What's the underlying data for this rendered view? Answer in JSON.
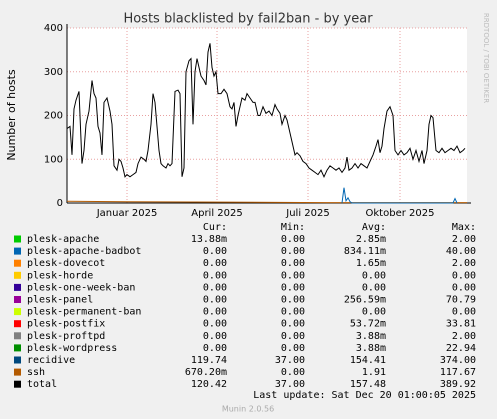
{
  "chart_data": {
    "type": "line",
    "title": "Hosts blacklisted by fail2ban - by year",
    "y_label": "Number of hosts",
    "side_label": "RRDTOOL / TOBI OETIKER",
    "xlim": [
      -60,
      340
    ],
    "xticks": [
      {
        "value": 0,
        "label": "Januar 2025"
      },
      {
        "value": 90,
        "label": "April 2025"
      },
      {
        "value": 181,
        "label": "Juli 2025"
      },
      {
        "value": 273,
        "label": "Oktober 2025"
      }
    ],
    "ylim": [
      0,
      400
    ],
    "yticks": [
      0,
      100,
      200,
      300,
      400
    ],
    "grid": true,
    "series": [
      {
        "name": "total",
        "color": "#000000",
        "x": [
          -60,
          -57,
          -55,
          -53,
          -51,
          -48,
          -45,
          -43,
          -41,
          -38,
          -35,
          -33,
          -31,
          -29,
          -27,
          -25,
          -23,
          -20,
          -17,
          -15,
          -13,
          -10,
          -8,
          -6,
          -4,
          -2,
          0,
          3,
          6,
          9,
          11,
          14,
          17,
          19,
          21,
          24,
          26,
          28,
          30,
          32,
          34,
          36,
          39,
          41,
          43,
          45,
          48,
          51,
          53,
          55,
          57,
          59,
          62,
          64,
          66,
          68,
          70,
          72,
          74,
          77,
          79,
          81,
          83,
          85,
          87,
          89,
          91,
          94,
          97,
          100,
          103,
          105,
          107,
          109,
          111,
          113,
          115,
          118,
          120,
          123,
          126,
          128,
          131,
          133,
          136,
          139,
          142,
          145,
          148,
          150,
          153,
          155,
          158,
          160,
          163,
          166,
          168,
          170,
          173,
          176,
          179,
          182,
          185,
          188,
          191,
          194,
          197,
          200,
          203,
          206,
          209,
          212,
          215,
          218,
          220,
          222,
          225,
          228,
          231,
          234,
          237,
          240,
          243,
          246,
          249,
          251,
          253,
          255,
          257,
          260,
          263,
          266,
          268,
          271,
          274,
          277,
          280,
          283,
          286,
          289,
          292,
          295,
          297,
          300,
          302,
          304,
          306,
          309,
          312,
          315,
          318,
          321,
          324,
          327,
          330,
          333,
          336,
          338
        ],
        "values": [
          170,
          175,
          110,
          215,
          235,
          255,
          90,
          120,
          180,
          210,
          280,
          250,
          240,
          175,
          160,
          110,
          230,
          240,
          210,
          180,
          85,
          75,
          100,
          95,
          80,
          60,
          65,
          60,
          65,
          70,
          90,
          105,
          100,
          95,
          120,
          180,
          250,
          230,
          175,
          120,
          90,
          85,
          80,
          90,
          85,
          90,
          255,
          258,
          250,
          60,
          80,
          300,
          325,
          330,
          180,
          300,
          330,
          310,
          290,
          280,
          270,
          345,
          365,
          310,
          290,
          300,
          250,
          250,
          260,
          250,
          220,
          215,
          230,
          175,
          200,
          220,
          240,
          235,
          250,
          240,
          230,
          230,
          200,
          200,
          220,
          205,
          210,
          200,
          225,
          215,
          205,
          180,
          200,
          190,
          160,
          130,
          110,
          115,
          108,
          95,
          90,
          80,
          75,
          70,
          65,
          75,
          60,
          75,
          85,
          80,
          75,
          80,
          70,
          80,
          105,
          75,
          80,
          90,
          80,
          90,
          85,
          80,
          95,
          110,
          130,
          145,
          115,
          130,
          170,
          210,
          220,
          200,
          120,
          110,
          120,
          110,
          115,
          125,
          100,
          120,
          95,
          120,
          90,
          120,
          180,
          200,
          195,
          120,
          115,
          125,
          115,
          120,
          125,
          120,
          130,
          115,
          120,
          125
        ]
      },
      {
        "name": "plesk-apache-badbot",
        "color": "#0066b3",
        "x": [
          215,
          217,
          219,
          221,
          223,
          225,
          326,
          328,
          330
        ],
        "values": [
          0,
          35,
          5,
          12,
          3,
          0,
          0,
          10,
          0
        ]
      },
      {
        "name": "ssh",
        "color": "#b35a00",
        "x": [
          -60,
          0,
          100,
          200,
          340
        ],
        "values": [
          4,
          3,
          2,
          1,
          1
        ]
      }
    ],
    "legend": {
      "headers": [
        "Cur:",
        "Min:",
        "Avg:",
        "Max:"
      ],
      "rows": [
        {
          "name": "plesk-apache",
          "color": "#00cc00",
          "cur": "13.88m",
          "min": "0.00",
          "avg": "2.85m",
          "max": "2.00"
        },
        {
          "name": "plesk-apache-badbot",
          "color": "#0066b3",
          "cur": "0.00",
          "min": "0.00",
          "avg": "834.11m",
          "max": "40.00"
        },
        {
          "name": "plesk-dovecot",
          "color": "#ff8000",
          "cur": "0.00",
          "min": "0.00",
          "avg": "1.65m",
          "max": "2.00"
        },
        {
          "name": "plesk-horde",
          "color": "#ffcc00",
          "cur": "0.00",
          "min": "0.00",
          "avg": "0.00",
          "max": "0.00"
        },
        {
          "name": "plesk-one-week-ban",
          "color": "#330099",
          "cur": "0.00",
          "min": "0.00",
          "avg": "0.00",
          "max": "0.00"
        },
        {
          "name": "plesk-panel",
          "color": "#990099",
          "cur": "0.00",
          "min": "0.00",
          "avg": "256.59m",
          "max": "70.79"
        },
        {
          "name": "plesk-permanent-ban",
          "color": "#ccff00",
          "cur": "0.00",
          "min": "0.00",
          "avg": "0.00",
          "max": "0.00"
        },
        {
          "name": "plesk-postfix",
          "color": "#ff0000",
          "cur": "0.00",
          "min": "0.00",
          "avg": "53.72m",
          "max": "33.81"
        },
        {
          "name": "plesk-proftpd",
          "color": "#808080",
          "cur": "0.00",
          "min": "0.00",
          "avg": "3.88m",
          "max": "2.00"
        },
        {
          "name": "plesk-wordpress",
          "color": "#008f00",
          "cur": "0.00",
          "min": "0.00",
          "avg": "3.88m",
          "max": "22.94"
        },
        {
          "name": "recidive",
          "color": "#00487d",
          "cur": "119.74",
          "min": "37.00",
          "avg": "154.41",
          "max": "374.00"
        },
        {
          "name": "ssh",
          "color": "#b35a00",
          "cur": "670.20m",
          "min": "0.00",
          "avg": "1.91",
          "max": "117.67"
        },
        {
          "name": "total",
          "color": "#000000",
          "cur": "120.42",
          "min": "37.00",
          "avg": "157.48",
          "max": "389.92"
        }
      ]
    },
    "last_update": "Last update: Sat Dec 20 01:00:05 2025",
    "footer": "Munin 2.0.56"
  }
}
